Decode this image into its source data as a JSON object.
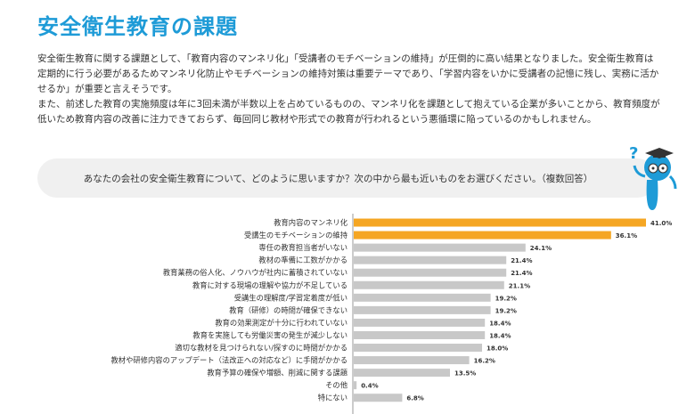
{
  "page": {
    "title": "安全衛生教育の課題",
    "paragraph1": "安全衛生教育に関する課題として、「教育内容のマンネリ化」「受講者のモチベーションの維持」が圧倒的に高い結果となりました。安全衛生教育は定期的に行う必要があるためマンネリ化防止やモチベーションの維持対策は重要テーマであり、「学習内容をいかに受講者の記憶に残し、実務に活かせるか」が重要と言えそうです。",
    "paragraph2": "また、前述した教育の実施頻度は年に3回未満が半数以上を占めているものの、マンネリ化を課題として抱えている企業が多いことから、教育頻度が低いため教育内容の改善に注力できておらず、毎回同じ教材や形式での教育が行われるという悪循環に陥っているのかもしれません。",
    "question": "あなたの会社の安全衛生教育について、どのように思いますか？次の中から最も近いものをお選びください。（複数回答）",
    "mascot_mark": "?"
  },
  "colors": {
    "title": "#1e9bd7",
    "highlight_bar": "#f5a623",
    "normal_bar": "#c8c8c8",
    "mascot": "#1e9bd7"
  },
  "chart_data": {
    "type": "bar",
    "orientation": "horizontal",
    "highlight_count": 2,
    "categories": [
      "教育内容のマンネリ化",
      "受講生のモチベーションの維持",
      "専任の教育担当者がいない",
      "教材の準備に工数がかかる",
      "教育業務の俗人化、ノウハウが社内に蓄積されていない",
      "教育に対する現場の理解や協力が不足している",
      "受講生の理解度/学習定着度が低い",
      "教育（研修）の時間が確保できない",
      "教育の効果測定が十分に行われていない",
      "教育を実施しても労働災害の発生が減少しない",
      "適切な教材を見つけられない/探すのに時間がかかる",
      "教材や研修内容のアップデート（法改正への対応など）に手間がかかる",
      "教育予算の確保や増額、削減に関する課題",
      "その他",
      "特にない"
    ],
    "values": [
      41.0,
      36.1,
      24.1,
      21.4,
      21.4,
      21.1,
      19.2,
      19.2,
      18.4,
      18.4,
      18.0,
      16.2,
      13.5,
      0.4,
      6.8
    ],
    "value_labels": [
      "41.0%",
      "36.1%",
      "24.1%",
      "21.4%",
      "21.4%",
      "21.1%",
      "19.2%",
      "19.2%",
      "18.4%",
      "18.4%",
      "18.0%",
      "16.2%",
      "13.5%",
      "0.4%",
      "6.8%"
    ],
    "xlim": [
      0,
      45
    ]
  }
}
